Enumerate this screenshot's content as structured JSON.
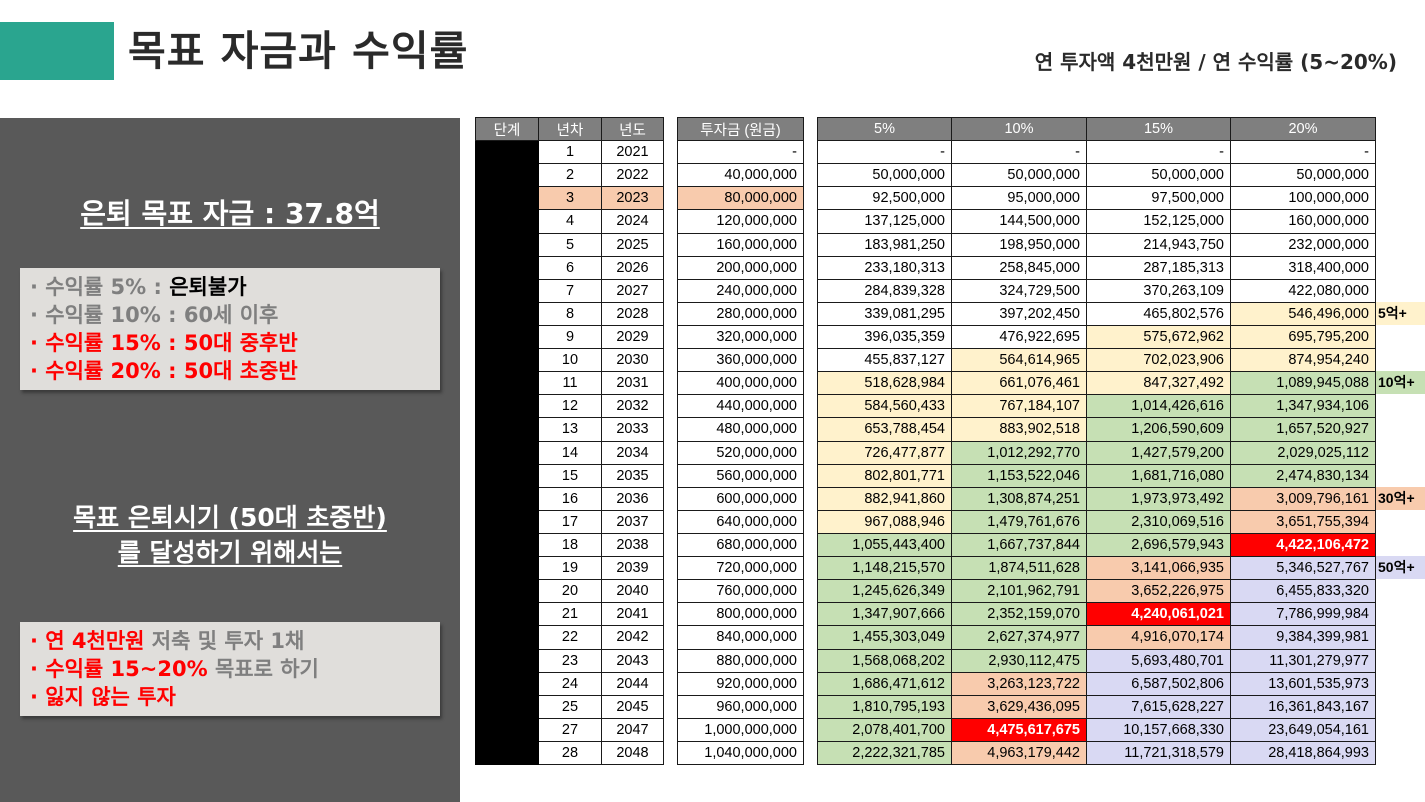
{
  "header": {
    "title": "목표 자금과 수익률",
    "subtitle": "연 투자액 4천만원 / 연 수익률 (5~20%)",
    "accent_color": "#2aa58f"
  },
  "left_panel": {
    "goal_heading": "은퇴 목표 자금 : 37.8억",
    "box1": [
      {
        "prefix": "· 수익률 5% : ",
        "value": "은퇴불가"
      },
      {
        "prefix": "· 수익률 10% : ",
        "value": "60세 이후"
      },
      {
        "prefix": "· 수익률 15% : ",
        "value": "50대 중후반"
      },
      {
        "prefix": "· 수익률 20% : ",
        "value": "50대 초중반"
      }
    ],
    "goal2_line1": "목표 은퇴시기 (50대 초중반)",
    "goal2_line2": "를 달성하기 위해서는",
    "box2_line1_a": "· 연 4천만원",
    "box2_line1_b": " 저축 및 투자 1채",
    "box2_line2_a": "· 수익률 15~20%",
    "box2_line2_b": " 목표로 하기",
    "box2_line3": "· 잃지 않는 투자"
  },
  "table": {
    "headers": {
      "stage": "단계",
      "year_no": "년차",
      "year": "년도",
      "investment": "투자금 (원금)",
      "r5": "5%",
      "r10": "10%",
      "r15": "15%",
      "r20": "20%"
    },
    "rows": [
      {
        "n": "1",
        "y": "2021",
        "inv": "-",
        "r5": "-",
        "r10": "-",
        "r15": "-",
        "r20": "-"
      },
      {
        "n": "2",
        "y": "2022",
        "inv": "40,000,000",
        "r5": "50,000,000",
        "r10": "50,000,000",
        "r15": "50,000,000",
        "r20": "50,000,000"
      },
      {
        "n": "3",
        "y": "2023",
        "inv": "80,000,000",
        "r5": "92,500,000",
        "r10": "95,000,000",
        "r15": "97,500,000",
        "r20": "100,000,000"
      },
      {
        "n": "4",
        "y": "2024",
        "inv": "120,000,000",
        "r5": "137,125,000",
        "r10": "144,500,000",
        "r15": "152,125,000",
        "r20": "160,000,000"
      },
      {
        "n": "5",
        "y": "2025",
        "inv": "160,000,000",
        "r5": "183,981,250",
        "r10": "198,950,000",
        "r15": "214,943,750",
        "r20": "232,000,000"
      },
      {
        "n": "6",
        "y": "2026",
        "inv": "200,000,000",
        "r5": "233,180,313",
        "r10": "258,845,000",
        "r15": "287,185,313",
        "r20": "318,400,000"
      },
      {
        "n": "7",
        "y": "2027",
        "inv": "240,000,000",
        "r5": "284,839,328",
        "r10": "324,729,500",
        "r15": "370,263,109",
        "r20": "422,080,000"
      },
      {
        "n": "8",
        "y": "2028",
        "inv": "280,000,000",
        "r5": "339,081,295",
        "r10": "397,202,450",
        "r15": "465,802,576",
        "r20": "546,496,000"
      },
      {
        "n": "9",
        "y": "2029",
        "inv": "320,000,000",
        "r5": "396,035,359",
        "r10": "476,922,695",
        "r15": "575,672,962",
        "r20": "695,795,200"
      },
      {
        "n": "10",
        "y": "2030",
        "inv": "360,000,000",
        "r5": "455,837,127",
        "r10": "564,614,965",
        "r15": "702,023,906",
        "r20": "874,954,240"
      },
      {
        "n": "11",
        "y": "2031",
        "inv": "400,000,000",
        "r5": "518,628,984",
        "r10": "661,076,461",
        "r15": "847,327,492",
        "r20": "1,089,945,088"
      },
      {
        "n": "12",
        "y": "2032",
        "inv": "440,000,000",
        "r5": "584,560,433",
        "r10": "767,184,107",
        "r15": "1,014,426,616",
        "r20": "1,347,934,106"
      },
      {
        "n": "13",
        "y": "2033",
        "inv": "480,000,000",
        "r5": "653,788,454",
        "r10": "883,902,518",
        "r15": "1,206,590,609",
        "r20": "1,657,520,927"
      },
      {
        "n": "14",
        "y": "2034",
        "inv": "520,000,000",
        "r5": "726,477,877",
        "r10": "1,012,292,770",
        "r15": "1,427,579,200",
        "r20": "2,029,025,112"
      },
      {
        "n": "15",
        "y": "2035",
        "inv": "560,000,000",
        "r5": "802,801,771",
        "r10": "1,153,522,046",
        "r15": "1,681,716,080",
        "r20": "2,474,830,134"
      },
      {
        "n": "16",
        "y": "2036",
        "inv": "600,000,000",
        "r5": "882,941,860",
        "r10": "1,308,874,251",
        "r15": "1,973,973,492",
        "r20": "3,009,796,161"
      },
      {
        "n": "17",
        "y": "2037",
        "inv": "640,000,000",
        "r5": "967,088,946",
        "r10": "1,479,761,676",
        "r15": "2,310,069,516",
        "r20": "3,651,755,394"
      },
      {
        "n": "18",
        "y": "2038",
        "inv": "680,000,000",
        "r5": "1,055,443,400",
        "r10": "1,667,737,844",
        "r15": "2,696,579,943",
        "r20": "4,422,106,472"
      },
      {
        "n": "19",
        "y": "2039",
        "inv": "720,000,000",
        "r5": "1,148,215,570",
        "r10": "1,874,511,628",
        "r15": "3,141,066,935",
        "r20": "5,346,527,767"
      },
      {
        "n": "20",
        "y": "2040",
        "inv": "760,000,000",
        "r5": "1,245,626,349",
        "r10": "2,101,962,791",
        "r15": "3,652,226,975",
        "r20": "6,455,833,320"
      },
      {
        "n": "21",
        "y": "2041",
        "inv": "800,000,000",
        "r5": "1,347,907,666",
        "r10": "2,352,159,070",
        "r15": "4,240,061,021",
        "r20": "7,786,999,984"
      },
      {
        "n": "22",
        "y": "2042",
        "inv": "840,000,000",
        "r5": "1,455,303,049",
        "r10": "2,627,374,977",
        "r15": "4,916,070,174",
        "r20": "9,384,399,981"
      },
      {
        "n": "23",
        "y": "2043",
        "inv": "880,000,000",
        "r5": "1,568,068,202",
        "r10": "2,930,112,475",
        "r15": "5,693,480,701",
        "r20": "11,301,279,977"
      },
      {
        "n": "24",
        "y": "2044",
        "inv": "920,000,000",
        "r5": "1,686,471,612",
        "r10": "3,263,123,722",
        "r15": "6,587,502,806",
        "r20": "13,601,535,973"
      },
      {
        "n": "25",
        "y": "2045",
        "inv": "960,000,000",
        "r5": "1,810,795,193",
        "r10": "3,629,436,095",
        "r15": "7,615,628,227",
        "r20": "16,361,843,167"
      },
      {
        "n": "27",
        "y": "2047",
        "inv": "1,000,000,000",
        "r5": "2,078,401,700",
        "r10": "4,475,617,675",
        "r15": "10,157,668,330",
        "r20": "23,649,054,161"
      },
      {
        "n": "28",
        "y": "2048",
        "inv": "1,040,000,000",
        "r5": "2,222,321,785",
        "r10": "4,963,179,442",
        "r15": "11,721,318,579",
        "r20": "28,418,864,993"
      }
    ],
    "side_labels": [
      {
        "row": 8,
        "text": "5억+"
      },
      {
        "row": 11,
        "text": "10억+"
      },
      {
        "row": 16,
        "text": "30억+"
      },
      {
        "row": 19,
        "text": "50억+"
      }
    ]
  },
  "colors": {
    "yellow": "#fff2cc",
    "green": "#c6e0b4",
    "orange": "#f8cbad",
    "red": "#ff0000",
    "purple": "#d9d9f3"
  }
}
